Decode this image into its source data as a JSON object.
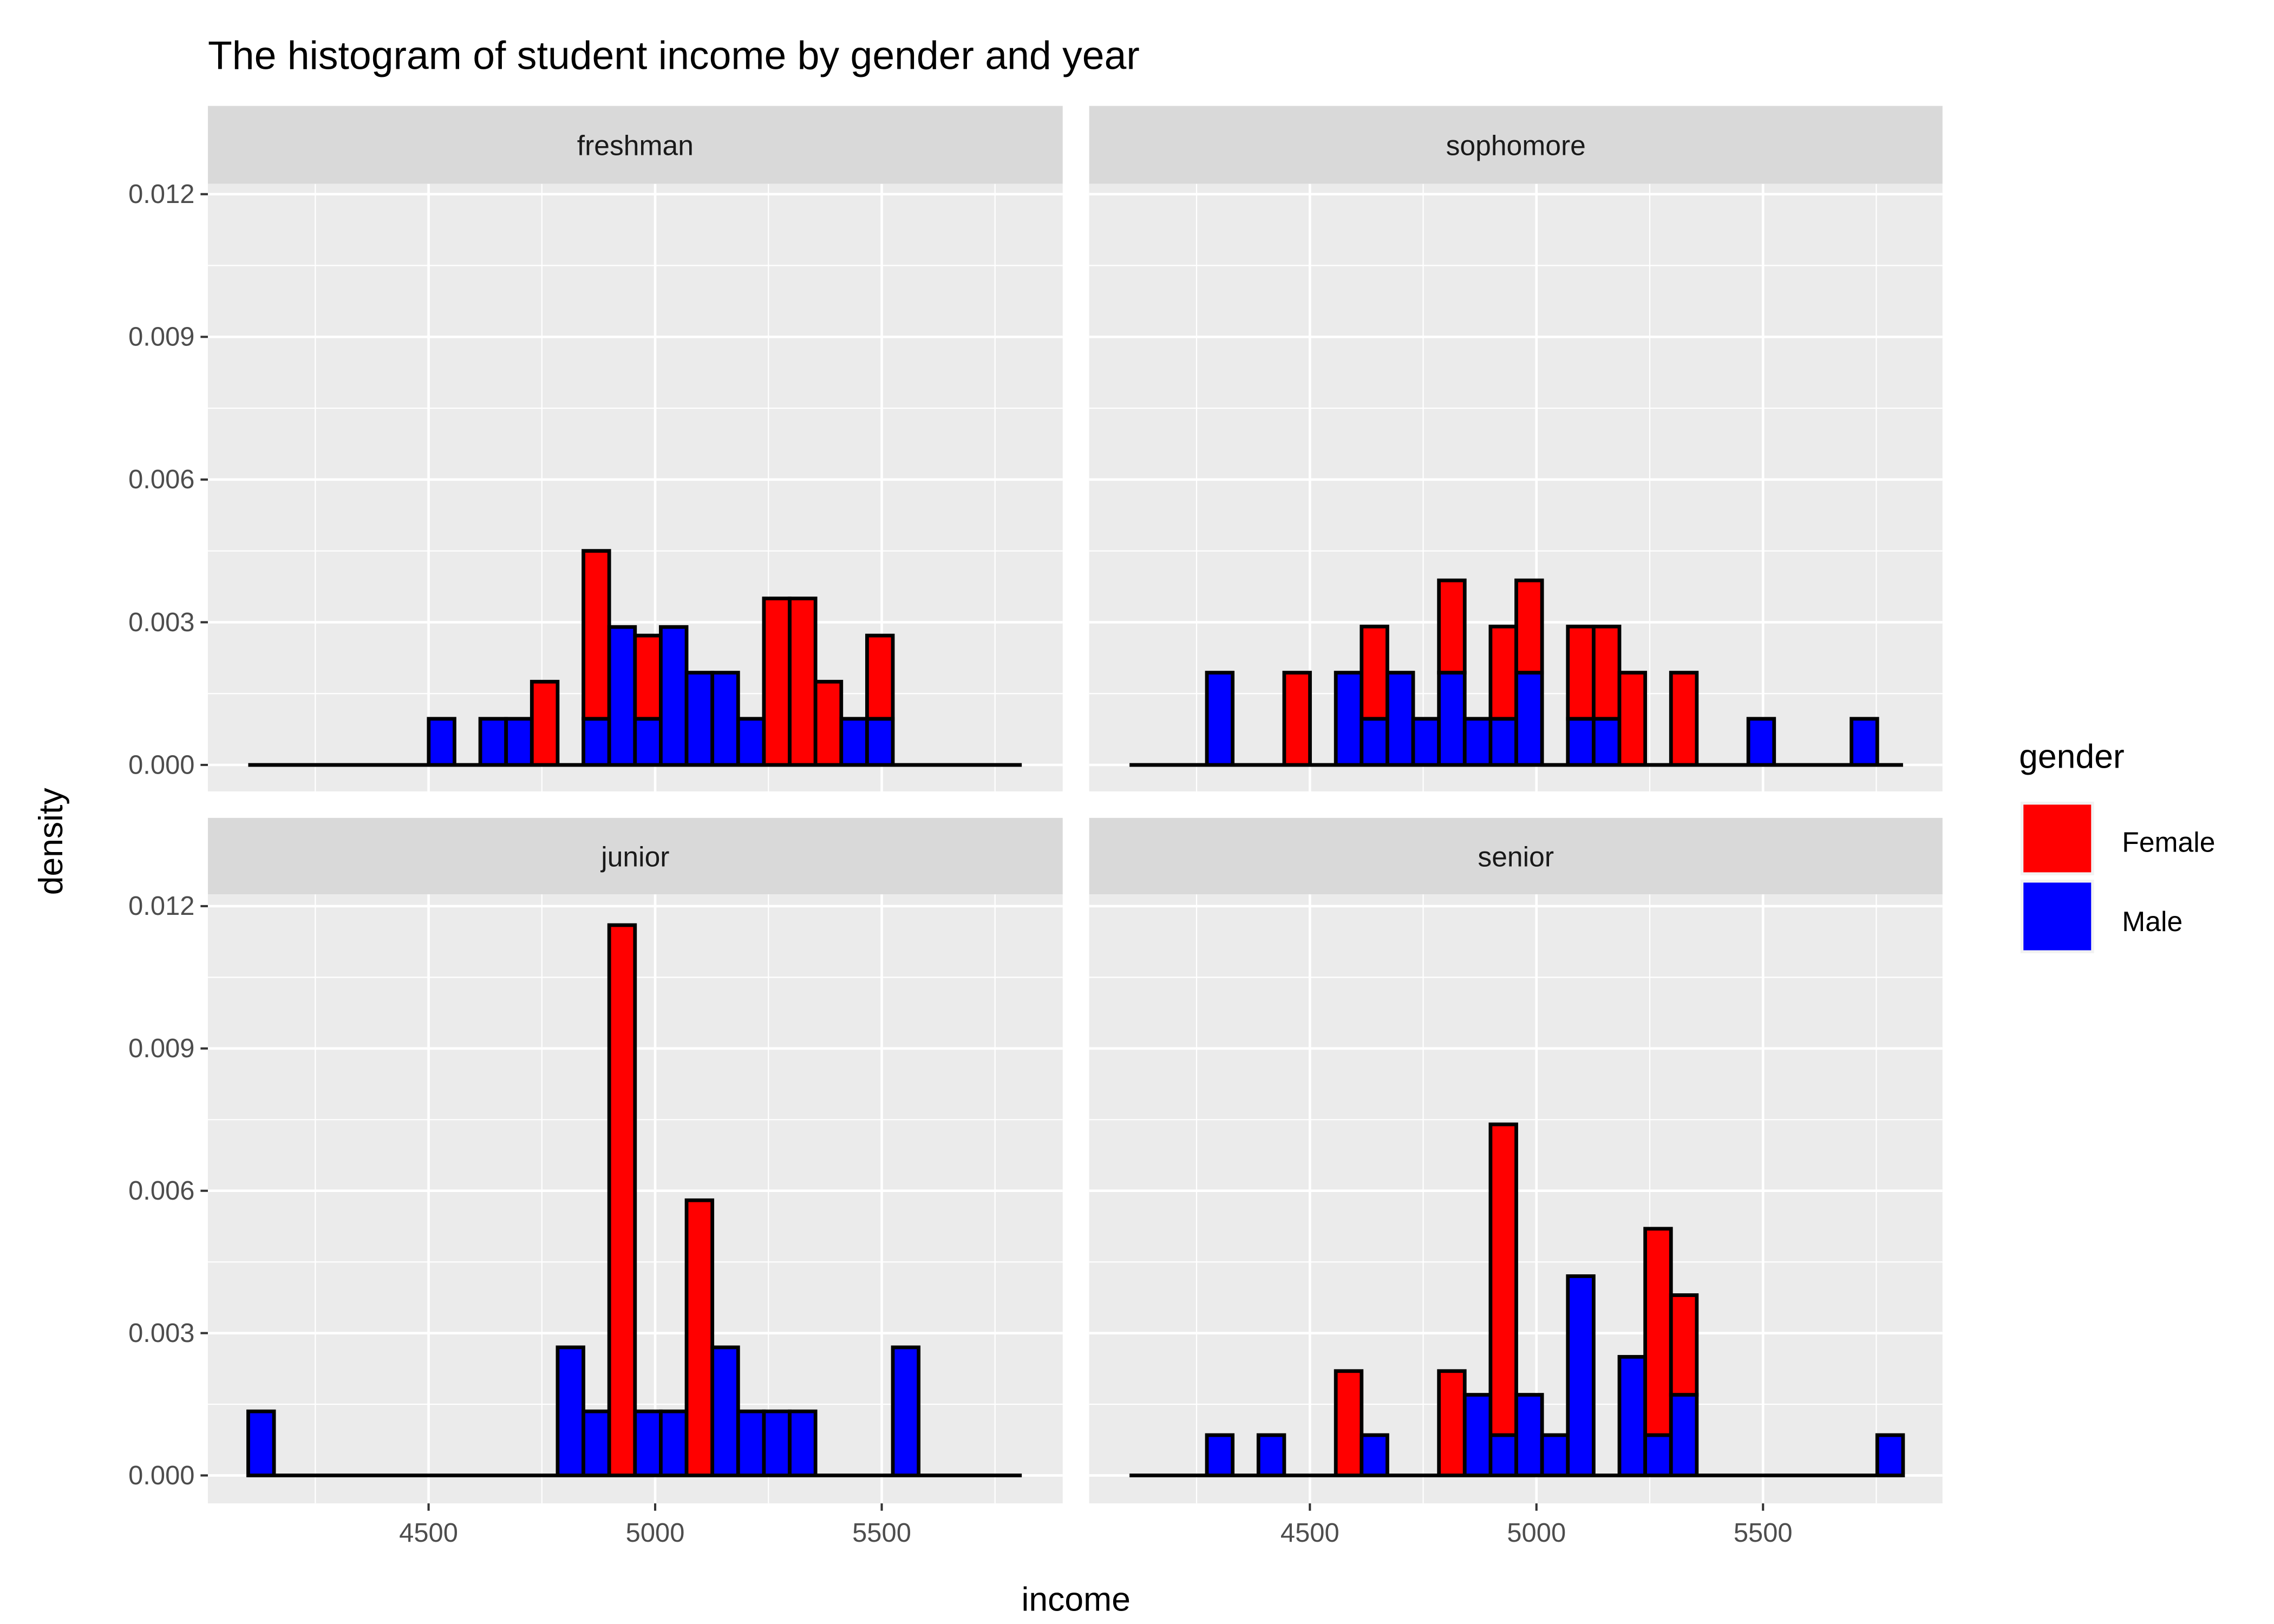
{
  "chart_data": {
    "type": "bar",
    "subtype": "stacked histogram, faceted",
    "title": "The histogram of student income by gender and year",
    "xlabel": "income",
    "ylabel": "density",
    "x_ticks": [
      "4500",
      "5000",
      "5500"
    ],
    "x_tick_values": [
      4500,
      5000,
      5500
    ],
    "y_ticks": [
      "0.000",
      "0.003",
      "0.006",
      "0.009",
      "0.012"
    ],
    "y_tick_values": [
      0,
      0.003,
      0.006,
      0.009,
      0.012
    ],
    "xlim": [
      4102,
      5809
    ],
    "ylim": [
      0,
      0.012
    ],
    "bins": 30,
    "bin_start": 4102,
    "bin_width": 56.9,
    "grid": true,
    "legend": {
      "title": "gender",
      "position": "right",
      "entries": [
        {
          "label": "Female",
          "color": "#ff0000"
        },
        {
          "label": "Male",
          "color": "#0000ff"
        }
      ]
    },
    "bin_format": "[bin_index, female_density, male_density]",
    "facets": [
      {
        "label": "freshman",
        "bins": [
          [
            7,
            0,
            0.00097
          ],
          [
            9,
            0,
            0.00097
          ],
          [
            10,
            0,
            0.00097
          ],
          [
            11,
            0.00175,
            0
          ],
          [
            13,
            0.00353,
            0.00097
          ],
          [
            14,
            0,
            0.0029
          ],
          [
            15,
            0.00175,
            0.00097
          ],
          [
            16,
            0,
            0.0029
          ],
          [
            17,
            0,
            0.00194
          ],
          [
            18,
            0,
            0.00194
          ],
          [
            19,
            0,
            0.00097
          ],
          [
            20,
            0.0035,
            0
          ],
          [
            21,
            0.0035,
            0
          ],
          [
            22,
            0.00175,
            0
          ],
          [
            23,
            0,
            0.00097
          ],
          [
            24,
            0.00175,
            0.00097
          ]
        ]
      },
      {
        "label": "sophomore",
        "bins": [
          [
            3,
            0,
            0.00194
          ],
          [
            6,
            0.00194,
            0
          ],
          [
            8,
            0,
            0.00194
          ],
          [
            9,
            0.00194,
            0.00097
          ],
          [
            10,
            0,
            0.00194
          ],
          [
            11,
            0,
            0.00097
          ],
          [
            12,
            0.00194,
            0.00194
          ],
          [
            13,
            0,
            0.00097
          ],
          [
            14,
            0.00194,
            0.00097
          ],
          [
            15,
            0.00194,
            0.00194
          ],
          [
            17,
            0.00194,
            0.00097
          ],
          [
            18,
            0.00194,
            0.00097
          ],
          [
            19,
            0.00194,
            0
          ],
          [
            21,
            0.00194,
            0
          ],
          [
            24,
            0,
            0.00097
          ],
          [
            28,
            0,
            0.00097
          ]
        ]
      },
      {
        "label": "junior",
        "bins": [
          [
            0,
            0,
            0.00135
          ],
          [
            12,
            0,
            0.0027
          ],
          [
            13,
            0,
            0.00135
          ],
          [
            14,
            0.0116,
            0
          ],
          [
            15,
            0,
            0.00135
          ],
          [
            16,
            0,
            0.00135
          ],
          [
            17,
            0.0058,
            0
          ],
          [
            18,
            0,
            0.0027
          ],
          [
            19,
            0,
            0.00135
          ],
          [
            20,
            0,
            0.00135
          ],
          [
            21,
            0,
            0.00135
          ],
          [
            25,
            0,
            0.0027
          ]
        ]
      },
      {
        "label": "senior",
        "bins": [
          [
            3,
            0,
            0.00085
          ],
          [
            5,
            0,
            0.00085
          ],
          [
            8,
            0.0022,
            0
          ],
          [
            9,
            0,
            0.00085
          ],
          [
            12,
            0.0022,
            0
          ],
          [
            13,
            0,
            0.0017
          ],
          [
            14,
            0.00655,
            0.00085
          ],
          [
            15,
            0,
            0.0017
          ],
          [
            16,
            0,
            0.00085
          ],
          [
            17,
            0,
            0.0042
          ],
          [
            19,
            0,
            0.0025
          ],
          [
            20,
            0.00435,
            0.00085
          ],
          [
            21,
            0.0021,
            0.0017
          ],
          [
            29,
            0,
            0.00085
          ]
        ]
      }
    ]
  }
}
